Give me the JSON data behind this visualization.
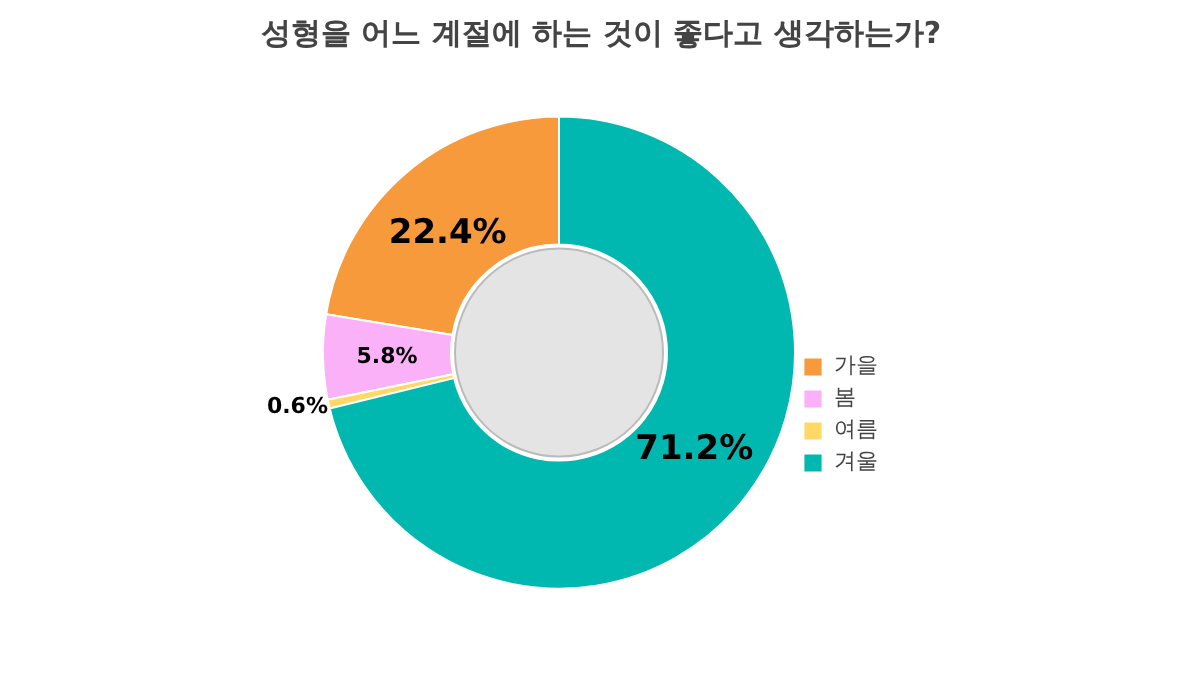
{
  "chart_data": {
    "type": "donut",
    "title": "성형을 어느 계절에 하는 것이 좋다고 생각하는가?",
    "categories": [
      "가을",
      "봄",
      "여름",
      "겨울"
    ],
    "values": [
      22.4,
      5.8,
      0.6,
      71.2
    ],
    "colors": [
      "#f79a3c",
      "#fbb1f8",
      "#ffd966",
      "#00b8b0"
    ],
    "value_labels": [
      "22.4%",
      "5.8%",
      "0.6%",
      "71.2%"
    ],
    "legend": "right"
  }
}
